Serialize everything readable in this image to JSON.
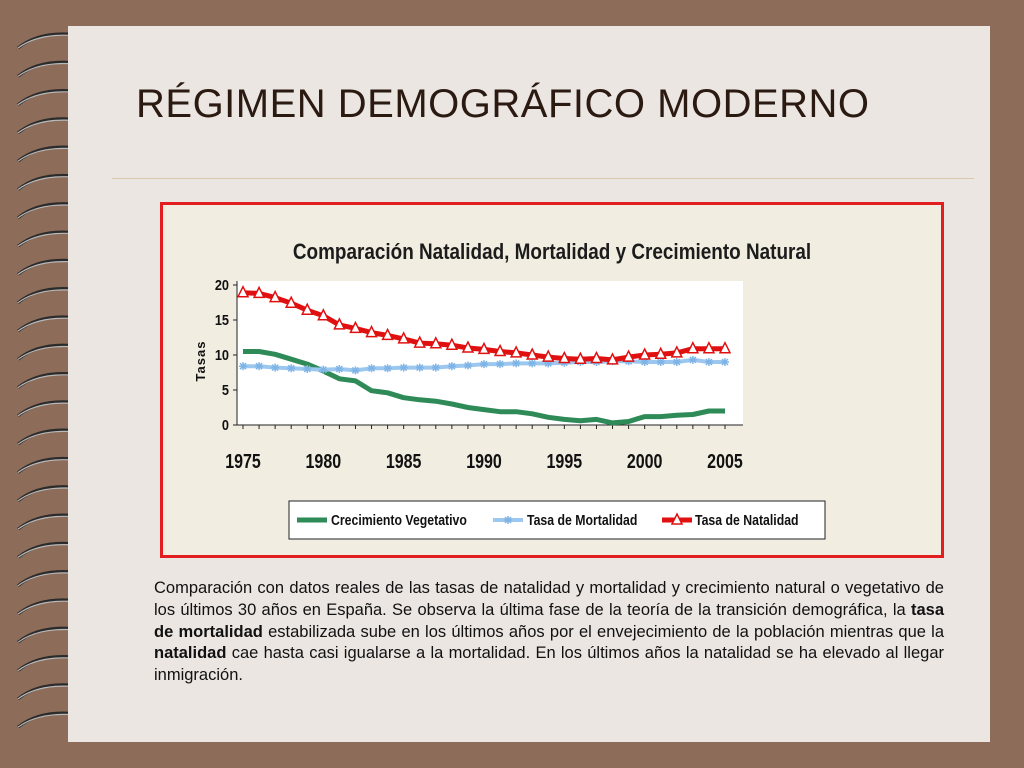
{
  "slide": {
    "title": "RÉGIMEN DEMOGRÁFICO MODERNO",
    "caption": {
      "p1": "Comparación con datos reales de las tasas de natalidad y mortalidad y crecimiento natural o vegetativo de los últimos 30 años en España. Se observa la última fase de la teoría de la transición demográfica, la ",
      "b1": "tasa de mortalidad",
      "p2": " estabilizada sube en los últimos años por el envejecimiento de la población mientras que la ",
      "b2": "natalidad",
      "p3": " cae hasta casi igualarse a la mortalidad. En los últimos años la natalidad se ha elevado al llegar inmigración."
    }
  },
  "colors": {
    "background": "#8d6d5a",
    "page": "#ece6e2",
    "chart_border": "#e31e1e",
    "crecimiento": "#2e8b57",
    "mortalidad": "#9cc8f0",
    "natalidad": "#e01010"
  },
  "chart_data": {
    "type": "line",
    "title": "Comparación Natalidad, Mortalidad y Crecimiento Natural",
    "ylabel": "Tasas",
    "xlabel": "",
    "xlim": [
      1975,
      2005
    ],
    "ylim": [
      0,
      20
    ],
    "x_ticks": [
      1975,
      1980,
      1985,
      1990,
      1995,
      2000,
      2005
    ],
    "y_ticks": [
      0,
      5,
      10,
      15,
      20
    ],
    "legend_position": "bottom",
    "x": [
      1975,
      1976,
      1977,
      1978,
      1979,
      1980,
      1981,
      1982,
      1983,
      1984,
      1985,
      1986,
      1987,
      1988,
      1989,
      1990,
      1991,
      1992,
      1993,
      1994,
      1995,
      1996,
      1997,
      1998,
      1999,
      2000,
      2001,
      2002,
      2003,
      2004,
      2005
    ],
    "series": [
      {
        "name": "Crecimiento Vegetativo",
        "marker": "none",
        "values": [
          10.5,
          10.5,
          10.1,
          9.4,
          8.7,
          7.7,
          6.6,
          6.3,
          4.9,
          4.6,
          3.9,
          3.6,
          3.4,
          3.0,
          2.5,
          2.2,
          1.9,
          1.9,
          1.6,
          1.1,
          0.8,
          0.6,
          0.8,
          0.3,
          0.5,
          1.2,
          1.2,
          1.4,
          1.5,
          2.0,
          2.0
        ]
      },
      {
        "name": "Tasa de Mortalidad",
        "marker": "star",
        "values": [
          8.4,
          8.4,
          8.2,
          8.1,
          8.0,
          7.9,
          8.0,
          7.8,
          8.1,
          8.1,
          8.2,
          8.2,
          8.2,
          8.4,
          8.5,
          8.7,
          8.7,
          8.8,
          8.8,
          8.8,
          8.9,
          9.0,
          9.0,
          9.1,
          9.1,
          9.0,
          9.0,
          9.0,
          9.3,
          9.0,
          9.0
        ]
      },
      {
        "name": "Tasa de Natalidad",
        "marker": "triangle",
        "values": [
          18.9,
          18.8,
          18.2,
          17.4,
          16.4,
          15.6,
          14.3,
          13.8,
          13.2,
          12.8,
          12.3,
          11.7,
          11.6,
          11.4,
          11.0,
          10.8,
          10.5,
          10.3,
          10.0,
          9.7,
          9.5,
          9.4,
          9.5,
          9.3,
          9.7,
          10.0,
          10.1,
          10.3,
          10.9,
          10.9,
          10.9
        ]
      }
    ]
  }
}
